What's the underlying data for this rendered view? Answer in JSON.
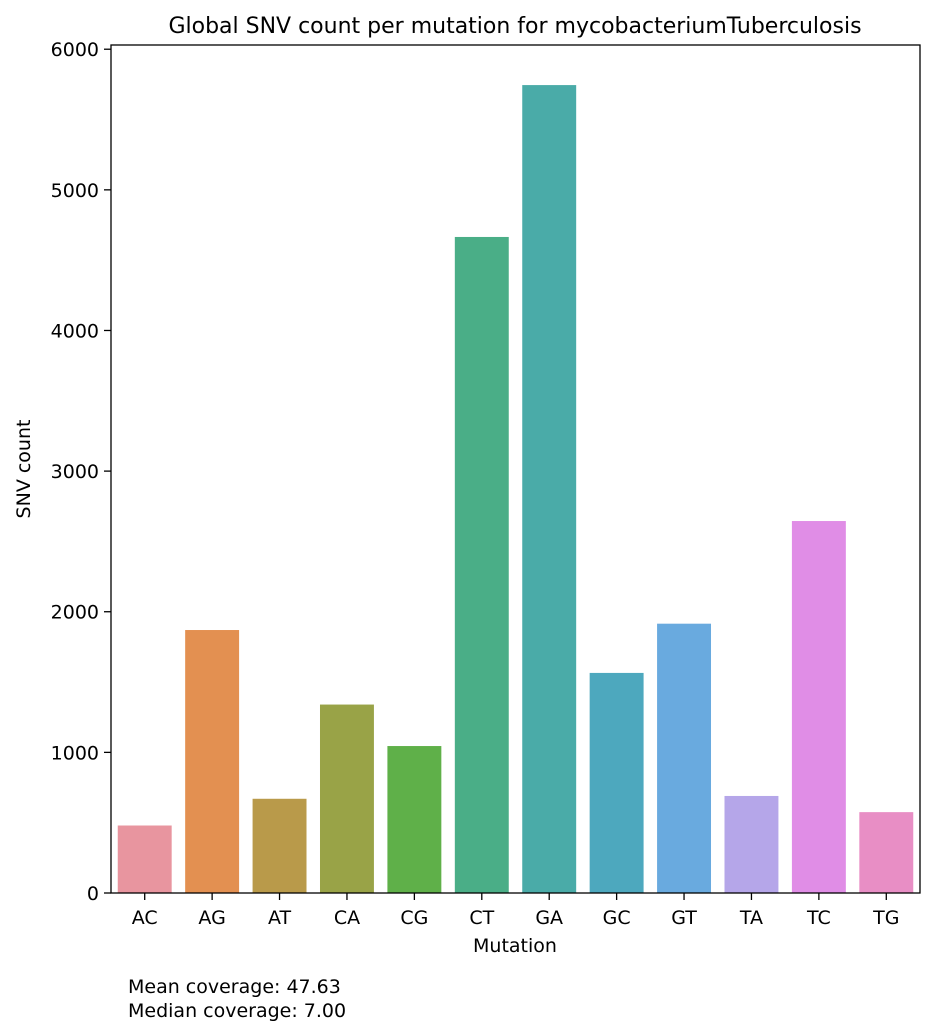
{
  "chart_data": {
    "type": "bar",
    "title": "Global SNV count per mutation for mycobacteriumTuberculosis",
    "xlabel": "Mutation",
    "ylabel": "SNV count",
    "ylim": [
      0,
      6030
    ],
    "yticks": [
      0,
      1000,
      2000,
      3000,
      4000,
      5000,
      6000
    ],
    "grid": false,
    "categories": [
      "AC",
      "AG",
      "AT",
      "CA",
      "CG",
      "CT",
      "GA",
      "GC",
      "GT",
      "TA",
      "TC",
      "TG"
    ],
    "values": [
      480,
      1870,
      670,
      1340,
      1045,
      4665,
      5745,
      1565,
      1915,
      690,
      2645,
      575
    ],
    "colors": [
      "#e8959f",
      "#e39051",
      "#b99a4a",
      "#99a347",
      "#5fb049",
      "#4aae87",
      "#4aaba8",
      "#4da8be",
      "#69aadf",
      "#b5a6e9",
      "#e08de6",
      "#e88ec5"
    ]
  },
  "notes": {
    "mean": "Mean coverage: 47.63",
    "median": "Median coverage: 7.00"
  }
}
